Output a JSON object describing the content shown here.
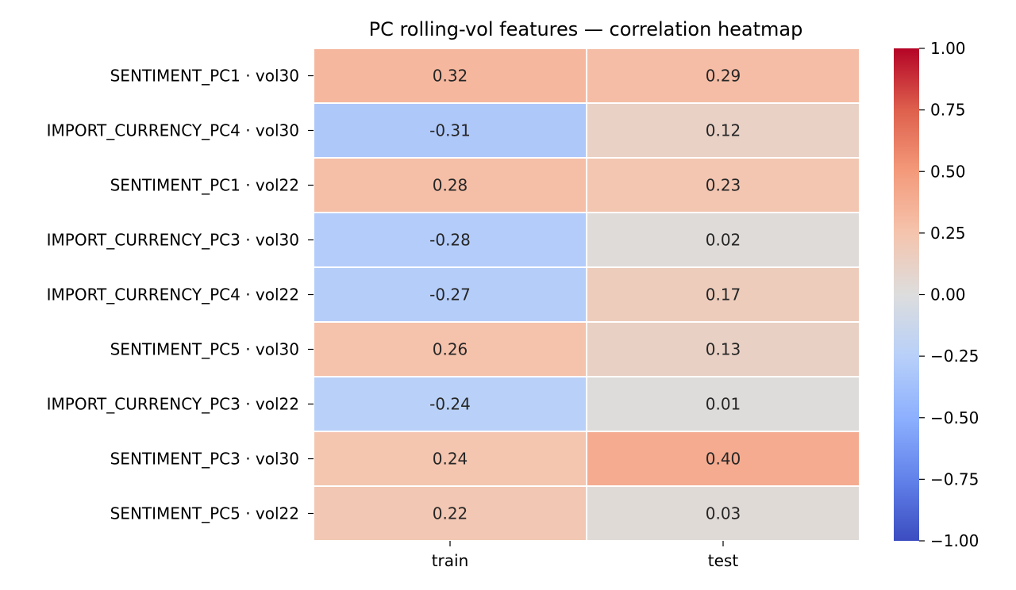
{
  "chart_data": {
    "type": "heatmap",
    "title": "PC rolling-vol features — correlation heatmap",
    "xlabel": "",
    "ylabel": "",
    "columns": [
      "train",
      "test"
    ],
    "rows": [
      "SENTIMENT_PC1 · vol30",
      "IMPORT_CURRENCY_PC4 · vol30",
      "SENTIMENT_PC1 · vol22",
      "IMPORT_CURRENCY_PC3 · vol30",
      "IMPORT_CURRENCY_PC4 · vol22",
      "SENTIMENT_PC5 · vol30",
      "IMPORT_CURRENCY_PC3 · vol22",
      "SENTIMENT_PC3 · vol30",
      "SENTIMENT_PC5 · vol22"
    ],
    "values": [
      [
        0.32,
        0.29
      ],
      [
        -0.31,
        0.12
      ],
      [
        0.28,
        0.23
      ],
      [
        -0.28,
        0.02
      ],
      [
        -0.27,
        0.17
      ],
      [
        0.26,
        0.13
      ],
      [
        -0.24,
        0.01
      ],
      [
        0.24,
        0.4
      ],
      [
        0.22,
        0.03
      ]
    ],
    "value_labels": [
      [
        "0.32",
        "0.29"
      ],
      [
        "-0.31",
        "0.12"
      ],
      [
        "0.28",
        "0.23"
      ],
      [
        "-0.28",
        "0.02"
      ],
      [
        "-0.27",
        "0.17"
      ],
      [
        "0.26",
        "0.13"
      ],
      [
        "-0.24",
        "0.01"
      ],
      [
        "0.24",
        "0.40"
      ],
      [
        "0.22",
        "0.03"
      ]
    ],
    "colorscale": "coolwarm",
    "vmin": -1.0,
    "vmax": 1.0,
    "colorbar_ticks": [
      1.0,
      0.75,
      0.5,
      0.25,
      0.0,
      -0.25,
      -0.5,
      -0.75,
      -1.0
    ],
    "colorbar_tick_labels": [
      "1.00",
      "0.75",
      "0.50",
      "0.25",
      "0.00",
      "−0.25",
      "−0.50",
      "−0.75",
      "−1.00"
    ],
    "grid": false,
    "legend": "colorbar-right"
  }
}
